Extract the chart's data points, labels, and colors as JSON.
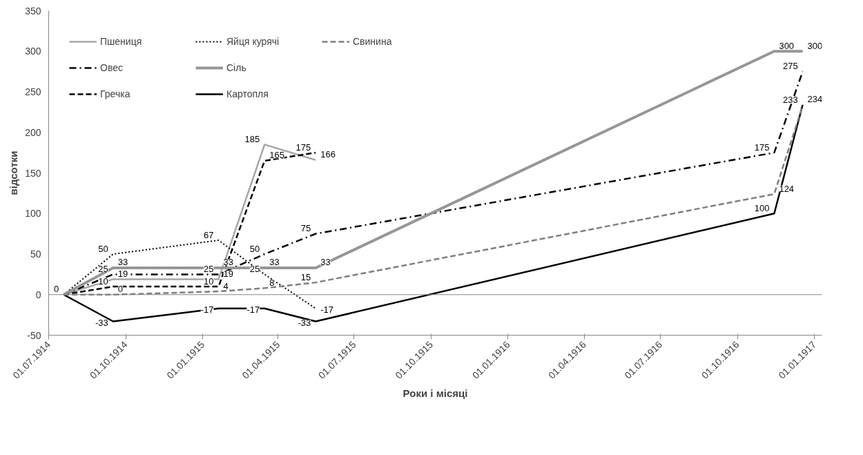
{
  "chart_data": {
    "type": "line",
    "xlabel": "Роки і місяці",
    "ylabel": "відсотки",
    "x": [
      "1914-07-19",
      "1914-09-16",
      "1915-01-20",
      "1915-03-16",
      "1915-05-16",
      "1916-11-14",
      "1916-12-18"
    ],
    "series": [
      {
        "name": "Пшениця",
        "color": "#a6a6a6",
        "line_style": "solid",
        "values": [
          0,
          19,
          19,
          185,
          166,
          null,
          null
        ],
        "value_labels": [
          null,
          "19",
          "19",
          "185",
          "166",
          null,
          null
        ]
      },
      {
        "name": "Овес",
        "color": "#000000",
        "line_style": "dashdot",
        "values": [
          0,
          25,
          25,
          50,
          75,
          175,
          275
        ],
        "value_labels": [
          null,
          "25",
          "25",
          "50",
          "75",
          "175",
          "275"
        ]
      },
      {
        "name": "Гречка",
        "color": "#000000",
        "line_style": "dashed",
        "values": [
          0,
          10,
          10,
          165,
          175,
          null,
          null
        ],
        "value_labels": [
          null,
          "10",
          "10",
          "165",
          "175",
          null,
          null
        ]
      },
      {
        "name": "Яйця курячі",
        "color": "#000000",
        "line_style": "dotted",
        "values": [
          0,
          50,
          67,
          25,
          -17,
          null,
          null
        ],
        "value_labels": [
          null,
          "50",
          "67",
          "25",
          "-17",
          null,
          null
        ]
      },
      {
        "name": "Сіль",
        "color": "#969696",
        "line_style": "solid",
        "values": [
          0,
          33,
          33,
          33,
          33,
          300,
          300
        ],
        "value_labels": [
          null,
          "33",
          "33",
          "33",
          "33",
          "300",
          "300"
        ]
      },
      {
        "name": "Картопля",
        "color": "#000000",
        "line_style": "solid",
        "values": [
          0,
          -33,
          -17,
          -17,
          -33,
          100,
          234
        ],
        "value_labels": [
          null,
          "-33",
          "-17",
          "-17",
          "-33",
          "100",
          "234"
        ]
      },
      {
        "name": "Свинина",
        "color": "#7f7f7f",
        "line_style": "dashed",
        "values": [
          0,
          0,
          4,
          8,
          15,
          124,
          233
        ],
        "value_labels": [
          "0",
          "0",
          "4",
          "8",
          "15",
          "124",
          "233"
        ]
      }
    ],
    "xlim": [
      "1914-07-01",
      "1917-01-10"
    ],
    "xticks": [
      {
        "value": "1914-07-01",
        "label": "01.07.1914"
      },
      {
        "value": "1914-10-01",
        "label": "01.10.1914"
      },
      {
        "value": "1915-01-01",
        "label": "01.01.1915"
      },
      {
        "value": "1915-04-01",
        "label": "01.04.1915"
      },
      {
        "value": "1915-07-01",
        "label": "01.07.1915"
      },
      {
        "value": "1915-10-01",
        "label": "01.10.1915"
      },
      {
        "value": "1916-01-01",
        "label": "01.01.1916"
      },
      {
        "value": "1916-04-01",
        "label": "01.04.1916"
      },
      {
        "value": "1916-07-01",
        "label": "01.07.1916"
      },
      {
        "value": "1916-10-01",
        "label": "01.10.1916"
      },
      {
        "value": "1917-01-01",
        "label": "01.01.1917"
      }
    ],
    "ylim": [
      -50,
      350
    ],
    "yticks": [
      -50,
      0,
      50,
      100,
      150,
      200,
      250,
      300,
      350
    ],
    "ref_lines": [
      {
        "axis": "y",
        "value": 0,
        "color": "#868686"
      }
    ],
    "grid": false,
    "legend": "top left",
    "marker": "none"
  }
}
